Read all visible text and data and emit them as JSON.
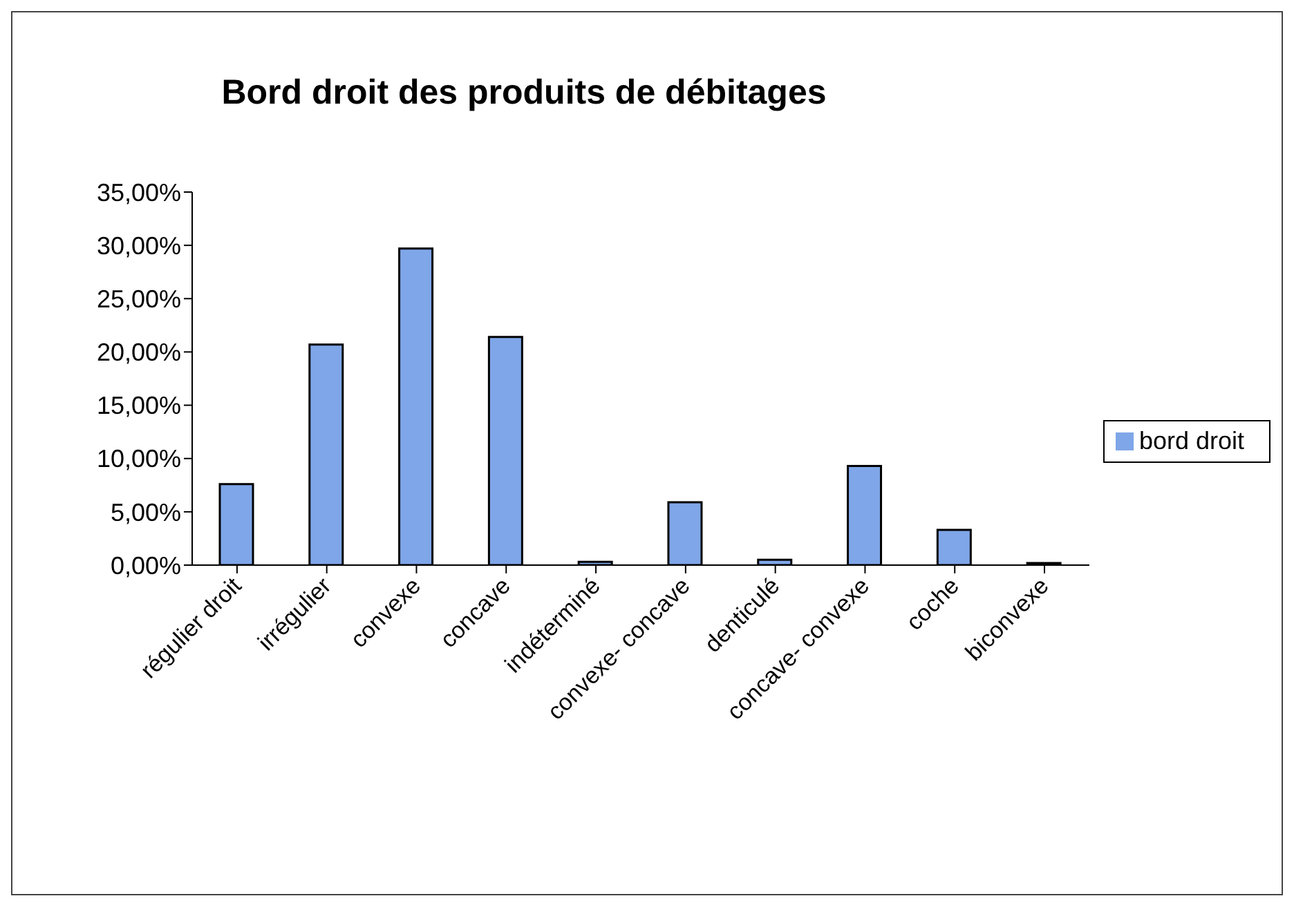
{
  "chart_data": {
    "type": "bar",
    "title": "Bord droit des produits de débitages",
    "categories": [
      "régulier droit",
      "irrégulier",
      "convexe",
      "concave",
      "indéterminé",
      "convexe- concave",
      "denticulé",
      "concave- convexe",
      "coche",
      "biconvexe"
    ],
    "series": [
      {
        "name": "bord droit",
        "color": "#7fa6e8",
        "values": [
          7.6,
          20.7,
          29.7,
          21.4,
          0.3,
          5.9,
          0.5,
          9.3,
          3.3,
          0.2
        ]
      }
    ],
    "ylim": [
      0,
      35
    ],
    "yticks": [
      {
        "value": 0,
        "label": "0,00%"
      },
      {
        "value": 5,
        "label": "5,00%"
      },
      {
        "value": 10,
        "label": "10,00%"
      },
      {
        "value": 15,
        "label": "15,00%"
      },
      {
        "value": 20,
        "label": "20,00%"
      },
      {
        "value": 25,
        "label": "25,00%"
      },
      {
        "value": 30,
        "label": "30,00%"
      },
      {
        "value": 35,
        "label": "35,00%"
      }
    ],
    "grid": false,
    "legend": "right"
  }
}
